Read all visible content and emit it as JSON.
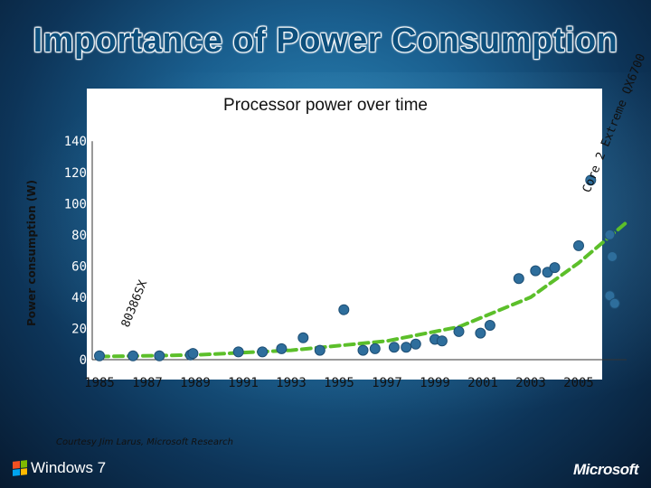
{
  "slide": {
    "title": "Importance of Power Consumption",
    "footnote": "Courtesy Jim Larus, Microsoft Research"
  },
  "brand": {
    "windows": "Windows 7",
    "microsoft": "Microsoft",
    "windows_logo_icon": "windows-flag-icon"
  },
  "colors": {
    "point": "#2e6e9c",
    "point_edge": "#1e4f75",
    "trend": "#5cbf2a",
    "title": "#0d4f7c"
  },
  "chart_data": {
    "type": "scatter",
    "title": "Processor power over time",
    "xlabel": "",
    "ylabel": "Power consumption (W)",
    "xlim": [
      1985,
      2007
    ],
    "ylim": [
      0,
      140
    ],
    "x_ticks": [
      "1985",
      "1987",
      "1989",
      "1991",
      "1993",
      "1995",
      "1997",
      "1999",
      "2001",
      "2003",
      "2005"
    ],
    "y_ticks": [
      "0",
      "20",
      "40",
      "60",
      "80",
      "100",
      "120",
      "140"
    ],
    "grid": false,
    "legend": "none",
    "annotations": [
      {
        "text": "80386SX",
        "x": 1986.0,
        "y": 5
      },
      {
        "text": "Core 2 Extreme QX6700",
        "x": 2006.8,
        "y": 130
      }
    ],
    "series": [
      {
        "points": [
          [
            1985.0,
            2.5
          ],
          [
            1986.4,
            2.5
          ],
          [
            1987.5,
            2.5
          ],
          [
            1988.8,
            3
          ],
          [
            1988.9,
            4
          ],
          [
            1990.8,
            5
          ],
          [
            1991.8,
            5
          ],
          [
            1992.6,
            7
          ],
          [
            1993.5,
            14
          ],
          [
            1994.2,
            6
          ],
          [
            1995.2,
            32
          ],
          [
            1996.0,
            6
          ],
          [
            1996.5,
            7
          ],
          [
            1997.3,
            8
          ],
          [
            1997.8,
            8
          ],
          [
            1998.2,
            10
          ],
          [
            1999.0,
            13
          ],
          [
            1999.3,
            12
          ],
          [
            2000.0,
            18
          ],
          [
            2000.9,
            17
          ],
          [
            2001.3,
            22
          ],
          [
            2002.5,
            52
          ],
          [
            2003.2,
            57
          ],
          [
            2003.7,
            56
          ],
          [
            2004.0,
            59
          ],
          [
            2005.0,
            73
          ],
          [
            2005.5,
            115
          ],
          [
            2006.3,
            80
          ],
          [
            2006.4,
            66
          ],
          [
            2006.3,
            41
          ],
          [
            2006.5,
            36
          ]
        ]
      }
    ],
    "trendline": {
      "type": "exponential",
      "points": [
        [
          1985,
          2
        ],
        [
          1989,
          3
        ],
        [
          1993,
          6
        ],
        [
          1997,
          12
        ],
        [
          2000,
          21
        ],
        [
          2003,
          40
        ],
        [
          2005,
          62
        ],
        [
          2007,
          88
        ]
      ]
    }
  }
}
